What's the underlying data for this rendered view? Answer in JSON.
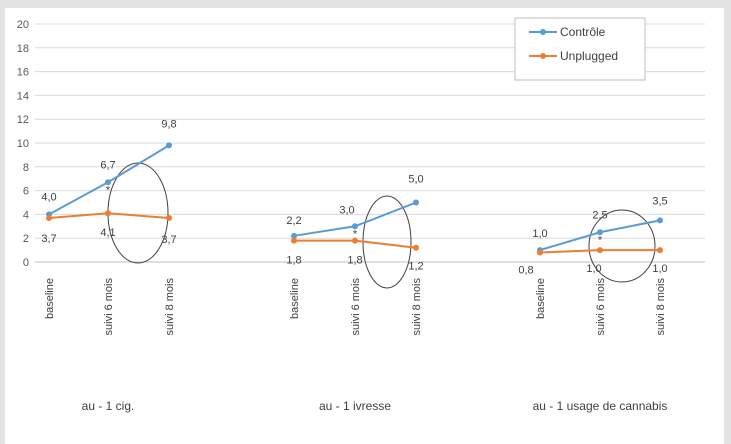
{
  "chart_data": {
    "type": "line",
    "ylim": [
      0,
      20
    ],
    "yticks": [
      0,
      2,
      4,
      6,
      8,
      10,
      12,
      14,
      16,
      18,
      20
    ],
    "grid": true,
    "legend_position": "top-right",
    "groups": [
      {
        "label": "au - 1 cig.",
        "categories": [
          "baseline",
          "suivi 6 mois",
          "suivi 8 mois"
        ],
        "series": [
          {
            "name": "Contrôle",
            "values": [
              4.0,
              6.7,
              9.8
            ],
            "labels": [
              "4,0",
              "6,7",
              "9,8"
            ]
          },
          {
            "name": "Unplugged",
            "values": [
              3.7,
              4.1,
              3.7
            ],
            "labels": [
              "3,7",
              "4,1",
              "3,7"
            ]
          }
        ]
      },
      {
        "label": "au - 1 ivresse",
        "categories": [
          "baseline",
          "suivi 6 mois",
          "suivi 8 mois"
        ],
        "series": [
          {
            "name": "Contrôle",
            "values": [
              2.2,
              3.0,
              5.0
            ],
            "labels": [
              "2,2",
              "3,0",
              "5,0"
            ]
          },
          {
            "name": "Unplugged",
            "values": [
              1.8,
              1.8,
              1.2
            ],
            "labels": [
              "1,8",
              "1,8",
              "1,2"
            ]
          }
        ]
      },
      {
        "label": "au - 1 usage de cannabis",
        "categories": [
          "baseline",
          "suivi 6 mois",
          "suivi 8 mois"
        ],
        "series": [
          {
            "name": "Contrôle",
            "values": [
              1.0,
              2.5,
              3.5
            ],
            "labels": [
              "1,0",
              "2,5",
              "3,5"
            ]
          },
          {
            "name": "Unplugged",
            "values": [
              0.8,
              1.0,
              1.0
            ],
            "labels": [
              "0,8",
              "1,0",
              "1,0"
            ]
          }
        ]
      }
    ],
    "significance_markers": [
      "*",
      "*",
      "*"
    ],
    "highlight": "ellipse around the suivi 6 mois values of each group",
    "series_colors": {
      "Contrôle": "#5b9bd5",
      "Unplugged": "#ed7d31"
    },
    "legend": [
      {
        "name": "Contrôle",
        "color": "#5b9bd5"
      },
      {
        "name": "Unplugged",
        "color": "#ed7d31"
      }
    ]
  }
}
